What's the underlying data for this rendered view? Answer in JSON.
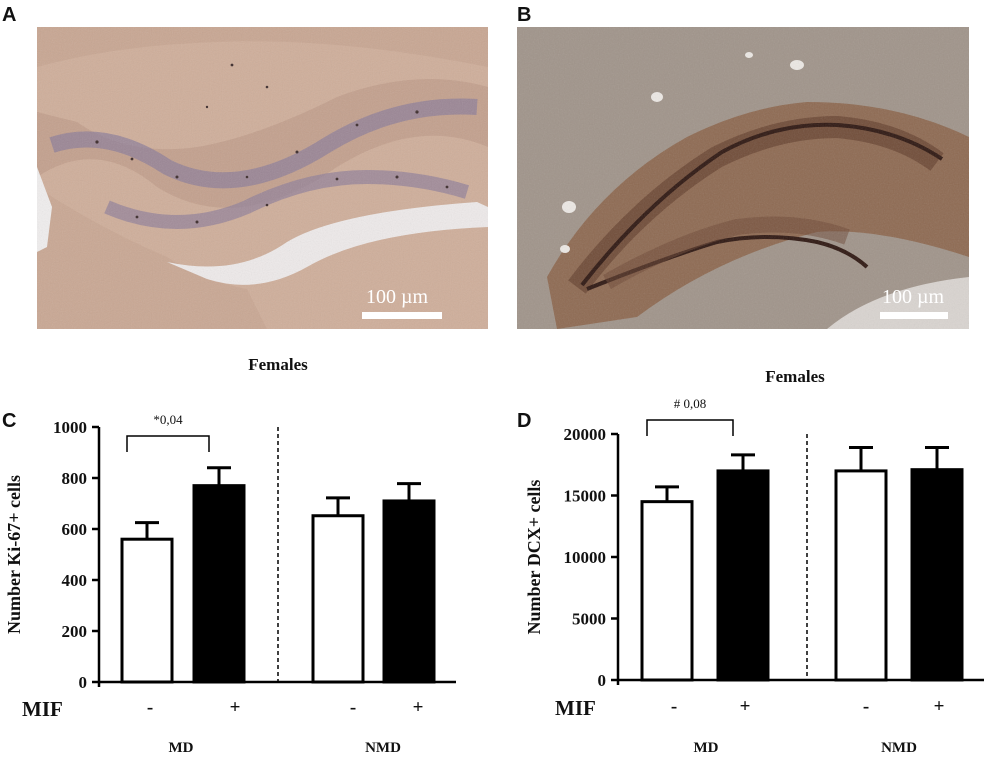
{
  "panels": {
    "A": {
      "letter": "A",
      "scale_label": "100 µm"
    },
    "B": {
      "letter": "B",
      "scale_label": "100 µm"
    },
    "C": {
      "letter": "C"
    },
    "D": {
      "letter": "D"
    }
  },
  "chart_data": [
    {
      "panel": "C",
      "type": "bar",
      "title": "Females",
      "ylabel": "Number Ki-67+ cells",
      "ylim": [
        0,
        1000
      ],
      "yticks": [
        "0",
        "200",
        "400",
        "600",
        "800",
        "1000"
      ],
      "ytick_values": [
        0,
        200,
        400,
        600,
        800,
        1000
      ],
      "factor_label": "MIF",
      "groups": [
        "MD",
        "NMD"
      ],
      "bars": [
        {
          "group": "MD",
          "mif": "-",
          "value": 560,
          "error": 65,
          "fill": "#ffffff"
        },
        {
          "group": "MD",
          "mif": "+",
          "value": 770,
          "error": 70,
          "fill": "#000000"
        },
        {
          "group": "NMD",
          "mif": "-",
          "value": 652,
          "error": 70,
          "fill": "#ffffff"
        },
        {
          "group": "NMD",
          "mif": "+",
          "value": 710,
          "error": 68,
          "fill": "#000000"
        }
      ],
      "annotation": {
        "text": "*0,04",
        "between": [
          0,
          1
        ]
      }
    },
    {
      "panel": "D",
      "type": "bar",
      "title": "Females",
      "ylabel": "Number DCX+ cells",
      "ylim": [
        0,
        20000
      ],
      "yticks": [
        "0",
        "5000",
        "10000",
        "15000",
        "20000"
      ],
      "ytick_values": [
        0,
        5000,
        10000,
        15000,
        20000
      ],
      "factor_label": "MIF",
      "groups": [
        "MD",
        "NMD"
      ],
      "bars": [
        {
          "group": "MD",
          "mif": "-",
          "value": 14500,
          "error": 1200,
          "fill": "#ffffff"
        },
        {
          "group": "MD",
          "mif": "+",
          "value": 17000,
          "error": 1300,
          "fill": "#000000"
        },
        {
          "group": "NMD",
          "mif": "-",
          "value": 17000,
          "error": 1900,
          "fill": "#ffffff"
        },
        {
          "group": "NMD",
          "mif": "+",
          "value": 17100,
          "error": 1800,
          "fill": "#000000"
        }
      ],
      "annotation": {
        "text": "# 0,08",
        "between": [
          0,
          1
        ]
      }
    }
  ]
}
